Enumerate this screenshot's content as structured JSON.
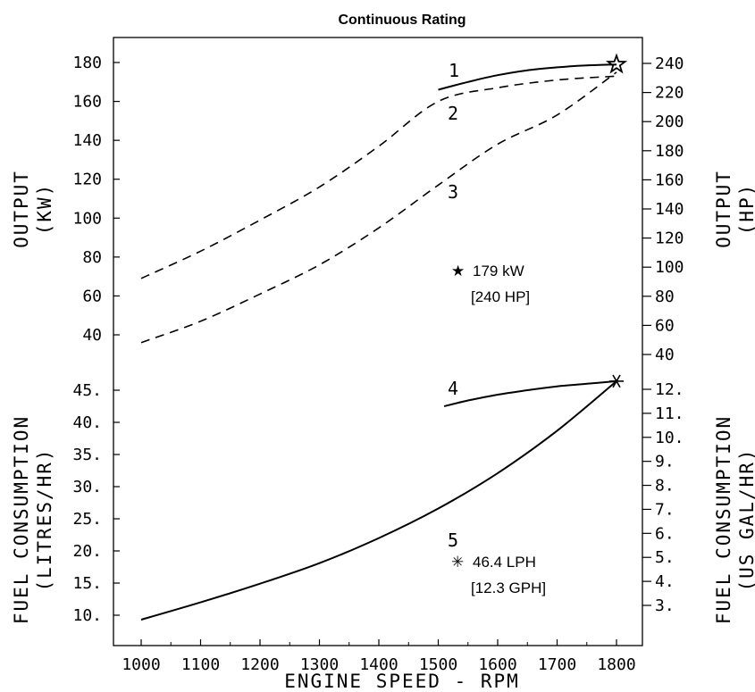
{
  "chart_data": {
    "type": "line",
    "title": "Continuous Rating",
    "xlabel": "ENGINE SPEED - RPM",
    "xlim": [
      950,
      1850
    ],
    "xticks": [
      "1000",
      "1100",
      "1200",
      "1300",
      "1400",
      "1500",
      "1600",
      "1700",
      "1800"
    ],
    "left_axes": {
      "output": {
        "label_line1": "OUTPUT",
        "label_line2": "(KW)",
        "ticks": [
          "180",
          "160",
          "140",
          "120",
          "100",
          "80",
          "60",
          "40"
        ]
      },
      "fuel": {
        "label_line1": "FUEL CONSUMPTION",
        "label_line2": "(LITRES/HR)",
        "ticks": [
          "45.",
          "40.",
          "35.",
          "30.",
          "25.",
          "20.",
          "15.",
          "10."
        ]
      }
    },
    "right_axes": {
      "output": {
        "label_line1": "OUTPUT",
        "label_line2": "(HP)",
        "ticks": [
          "240",
          "220",
          "200",
          "180",
          "160",
          "140",
          "120",
          "100",
          "80",
          "60",
          "40"
        ]
      },
      "fuel": {
        "label_line1": "FUEL CONSUMPTION",
        "label_line2": "(US GAL/HR)",
        "ticks": [
          "12.",
          "11.",
          "10.",
          "9.",
          "8.",
          "7.",
          "6.",
          "5.",
          "4.",
          "3."
        ]
      }
    },
    "series": [
      {
        "name": "1",
        "style": "solid",
        "axis": "kW",
        "x": [
          1500,
          1550,
          1600,
          1650,
          1700,
          1750,
          1800
        ],
        "y": [
          166,
          170,
          173.5,
          176,
          177.5,
          178.5,
          179
        ]
      },
      {
        "name": "2",
        "style": "dashed",
        "axis": "kW",
        "x": [
          1000,
          1100,
          1200,
          1300,
          1400,
          1500,
          1600,
          1700,
          1800
        ],
        "y": [
          69,
          83,
          99,
          116,
          137,
          160,
          167,
          171,
          173
        ]
      },
      {
        "name": "3",
        "style": "dashed",
        "axis": "kW",
        "x": [
          1000,
          1100,
          1200,
          1300,
          1400,
          1500,
          1600,
          1700,
          1800
        ],
        "y": [
          36,
          47,
          61,
          76,
          95,
          117,
          138,
          153,
          175
        ]
      },
      {
        "name": "4",
        "style": "solid",
        "axis": "LPH",
        "x": [
          1510,
          1550,
          1600,
          1650,
          1700,
          1750,
          1800
        ],
        "y": [
          42.5,
          43.4,
          44.3,
          45.0,
          45.6,
          46.0,
          46.4
        ]
      },
      {
        "name": "5",
        "style": "solid",
        "axis": "LPH",
        "x": [
          1000,
          1100,
          1200,
          1300,
          1400,
          1500,
          1600,
          1700,
          1800
        ],
        "y": [
          9.3,
          12.0,
          14.9,
          18.1,
          22.0,
          26.6,
          32.1,
          38.7,
          46.4
        ]
      }
    ],
    "markers": [
      {
        "symbol": "star",
        "x": 1800,
        "y": 179,
        "axis": "kW"
      },
      {
        "symbol": "asterisk",
        "x": 1800,
        "y": 46.4,
        "axis": "LPH"
      }
    ],
    "annotations": {
      "rated_power": {
        "symbol": "★",
        "line1": "179 kW",
        "line2": "[240 HP]"
      },
      "rated_fuel": {
        "symbol": "✳",
        "line1": "46.4 LPH",
        "line2": "[12.3 GPH]"
      }
    }
  }
}
